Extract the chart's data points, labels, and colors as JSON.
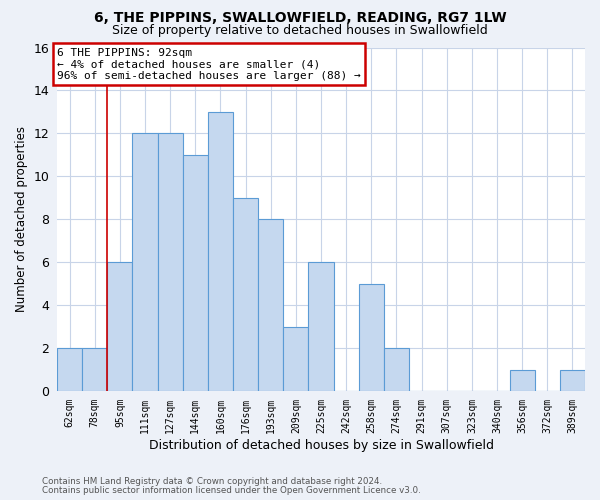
{
  "title1": "6, THE PIPPINS, SWALLOWFIELD, READING, RG7 1LW",
  "title2": "Size of property relative to detached houses in Swallowfield",
  "xlabel": "Distribution of detached houses by size in Swallowfield",
  "ylabel": "Number of detached properties",
  "bins": [
    "62sqm",
    "78sqm",
    "95sqm",
    "111sqm",
    "127sqm",
    "144sqm",
    "160sqm",
    "176sqm",
    "193sqm",
    "209sqm",
    "225sqm",
    "242sqm",
    "258sqm",
    "274sqm",
    "291sqm",
    "307sqm",
    "323sqm",
    "340sqm",
    "356sqm",
    "372sqm",
    "389sqm"
  ],
  "values": [
    2,
    2,
    6,
    12,
    12,
    11,
    13,
    9,
    8,
    3,
    6,
    0,
    5,
    2,
    0,
    0,
    0,
    0,
    1,
    0,
    1
  ],
  "bar_color": "#c5d8ef",
  "bar_edge_color": "#5b9bd5",
  "annotation_text": "6 THE PIPPINS: 92sqm\n← 4% of detached houses are smaller (4)\n96% of semi-detached houses are larger (88) →",
  "annotation_box_facecolor": "#ffffff",
  "annotation_box_edgecolor": "#cc0000",
  "vline_color": "#cc0000",
  "vline_x": 1.5,
  "ylim": [
    0,
    16
  ],
  "yticks": [
    0,
    2,
    4,
    6,
    8,
    10,
    12,
    14,
    16
  ],
  "background_color": "#edf1f8",
  "plot_background_color": "#ffffff",
  "grid_color": "#c8d4e8",
  "footer1": "Contains HM Land Registry data © Crown copyright and database right 2024.",
  "footer2": "Contains public sector information licensed under the Open Government Licence v3.0."
}
